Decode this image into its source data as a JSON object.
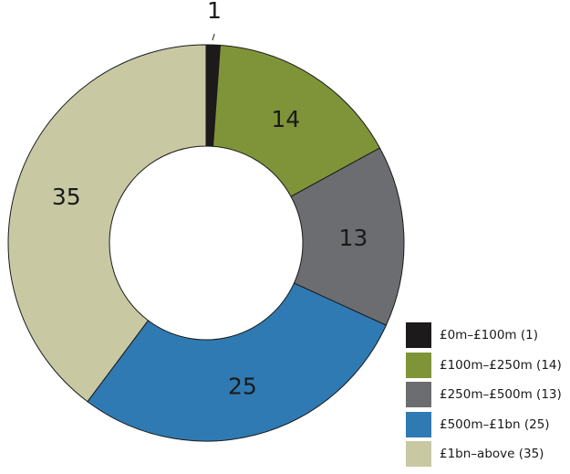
{
  "chart_data": {
    "type": "donut",
    "title": "",
    "categories": [
      "£0m–£100m",
      "£100m–£250m",
      "£250m–£500m",
      "£500m–£1bn",
      "£1bn–above"
    ],
    "values": [
      1,
      14,
      13,
      25,
      35
    ],
    "colors": [
      "#1c1a1b",
      "#7f9439",
      "#6c6d70",
      "#2f7ab3",
      "#c8c9a3"
    ],
    "slice_labels": [
      "1",
      "14",
      "13",
      "25",
      "35"
    ],
    "legend": [
      {
        "label": "£0m–£100m (1)",
        "color": "#1c1a1b"
      },
      {
        "label": "£100m–£250m (14)",
        "color": "#7f9439"
      },
      {
        "label": "£250m–£500m (13)",
        "color": "#6c6d70"
      },
      {
        "label": "£500m–£1bn (25)",
        "color": "#2f7ab3"
      },
      {
        "label": "£1bn–above (35)",
        "color": "#c8c9a3"
      }
    ],
    "legend_position": "bottom-right",
    "start_angle": "12 o'clock",
    "direction": "clockwise"
  }
}
